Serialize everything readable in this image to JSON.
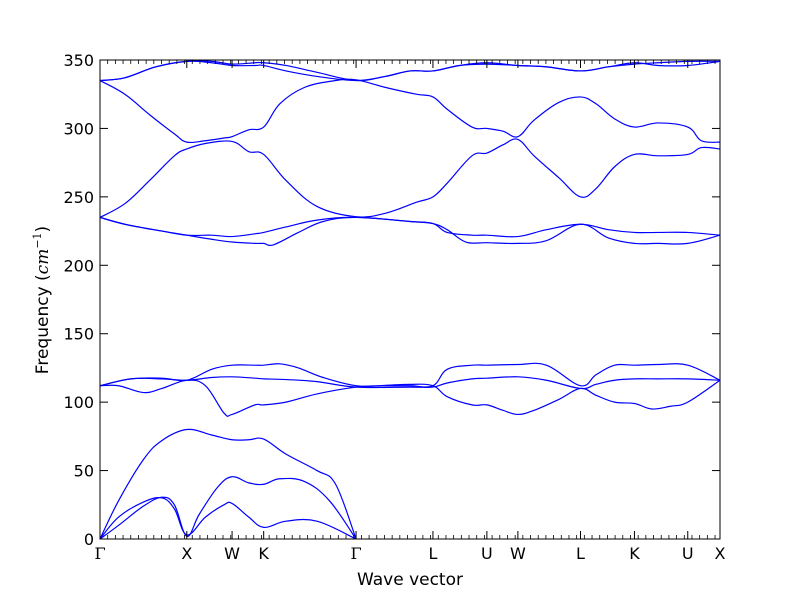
{
  "chart_data": {
    "type": "line",
    "title": "",
    "xlabel": "Wave vector",
    "ylabel_main": "Frequency (",
    "ylabel_unit": "cm",
    "ylabel_exp": "−1",
    "ylabel_close": ")",
    "ylim": [
      0,
      350
    ],
    "yticks": [
      0,
      50,
      100,
      150,
      200,
      250,
      300,
      350
    ],
    "xlim": [
      0,
      1
    ],
    "high_symmetry_points": [
      {
        "label": "Γ",
        "x": 0.0
      },
      {
        "label": "X",
        "x": 0.14
      },
      {
        "label": "W",
        "x": 0.213
      },
      {
        "label": "K",
        "x": 0.264
      },
      {
        "label": "Γ",
        "x": 0.413
      },
      {
        "label": "L",
        "x": 0.537
      },
      {
        "label": "U",
        "x": 0.624
      },
      {
        "label": "W",
        "x": 0.674
      },
      {
        "label": "L",
        "x": 0.775
      },
      {
        "label": "K",
        "x": 0.862
      },
      {
        "label": "U",
        "x": 0.948
      },
      {
        "label": "X",
        "x": 1.0
      }
    ],
    "minor_tick_spacing": 0.0124,
    "line_color": "#0000ff",
    "series": [
      {
        "points": [
          [
            0,
            0
          ],
          [
            0.03,
            10
          ],
          [
            0.07,
            24
          ],
          [
            0.1,
            30.5
          ],
          [
            0.12,
            25
          ],
          [
            0.14,
            2
          ],
          [
            0.16,
            18
          ],
          [
            0.19,
            38
          ],
          [
            0.213,
            45.5
          ],
          [
            0.24,
            41
          ],
          [
            0.264,
            40
          ],
          [
            0.29,
            44
          ],
          [
            0.33,
            42
          ],
          [
            0.37,
            28
          ],
          [
            0.413,
            0
          ]
        ]
      },
      {
        "points": [
          [
            0,
            0
          ],
          [
            0.03,
            16
          ],
          [
            0.07,
            27
          ],
          [
            0.1,
            30
          ],
          [
            0.12,
            22
          ],
          [
            0.14,
            3
          ],
          [
            0.17,
            16
          ],
          [
            0.2,
            25
          ],
          [
            0.213,
            26
          ],
          [
            0.24,
            16
          ],
          [
            0.264,
            8.5
          ],
          [
            0.3,
            13
          ],
          [
            0.35,
            13
          ],
          [
            0.413,
            0
          ]
        ]
      },
      {
        "points": [
          [
            0,
            0
          ],
          [
            0.03,
            28
          ],
          [
            0.07,
            58
          ],
          [
            0.1,
            72
          ],
          [
            0.14,
            80
          ],
          [
            0.18,
            76
          ],
          [
            0.213,
            72.5
          ],
          [
            0.24,
            72.5
          ],
          [
            0.264,
            73
          ],
          [
            0.3,
            62
          ],
          [
            0.35,
            50
          ],
          [
            0.38,
            40
          ],
          [
            0.413,
            0
          ]
        ]
      },
      {
        "points": [
          [
            0,
            112
          ],
          [
            0.03,
            112
          ],
          [
            0.07,
            107
          ],
          [
            0.1,
            110
          ],
          [
            0.14,
            116
          ],
          [
            0.17,
            112
          ],
          [
            0.2,
            92
          ],
          [
            0.213,
            91
          ],
          [
            0.25,
            98
          ],
          [
            0.264,
            98
          ],
          [
            0.3,
            100
          ],
          [
            0.35,
            106
          ],
          [
            0.413,
            111
          ],
          [
            0.45,
            112
          ],
          [
            0.5,
            113
          ],
          [
            0.537,
            112
          ],
          [
            0.56,
            104
          ],
          [
            0.6,
            98
          ],
          [
            0.624,
            98
          ],
          [
            0.65,
            94
          ],
          [
            0.674,
            91
          ],
          [
            0.7,
            94
          ],
          [
            0.74,
            102
          ],
          [
            0.775,
            110
          ],
          [
            0.8,
            105
          ],
          [
            0.83,
            100
          ],
          [
            0.862,
            99
          ],
          [
            0.89,
            95
          ],
          [
            0.92,
            97
          ],
          [
            0.948,
            100
          ],
          [
            1.0,
            116
          ]
        ]
      },
      {
        "points": [
          [
            0,
            112
          ],
          [
            0.05,
            117
          ],
          [
            0.1,
            117
          ],
          [
            0.14,
            116
          ],
          [
            0.18,
            118
          ],
          [
            0.213,
            118.5
          ],
          [
            0.25,
            117.5
          ],
          [
            0.264,
            117
          ],
          [
            0.3,
            116.5
          ],
          [
            0.35,
            115
          ],
          [
            0.413,
            111
          ],
          [
            0.5,
            111
          ],
          [
            0.537,
            111
          ],
          [
            0.56,
            114
          ],
          [
            0.6,
            117
          ],
          [
            0.624,
            117.5
          ],
          [
            0.674,
            118.5
          ],
          [
            0.72,
            116
          ],
          [
            0.775,
            110
          ],
          [
            0.8,
            113
          ],
          [
            0.83,
            116
          ],
          [
            0.862,
            117
          ],
          [
            0.9,
            117
          ],
          [
            0.948,
            117
          ],
          [
            1.0,
            116
          ]
        ]
      },
      {
        "points": [
          [
            0,
            112
          ],
          [
            0.05,
            117
          ],
          [
            0.1,
            117.5
          ],
          [
            0.14,
            116
          ],
          [
            0.18,
            124
          ],
          [
            0.213,
            127
          ],
          [
            0.25,
            127
          ],
          [
            0.264,
            127
          ],
          [
            0.29,
            128
          ],
          [
            0.32,
            125
          ],
          [
            0.36,
            118
          ],
          [
            0.413,
            112
          ],
          [
            0.46,
            112
          ],
          [
            0.5,
            112
          ],
          [
            0.537,
            112
          ],
          [
            0.56,
            124
          ],
          [
            0.6,
            127
          ],
          [
            0.624,
            127
          ],
          [
            0.674,
            127.5
          ],
          [
            0.72,
            127
          ],
          [
            0.775,
            112
          ],
          [
            0.8,
            120
          ],
          [
            0.83,
            127
          ],
          [
            0.862,
            127
          ],
          [
            0.9,
            127.5
          ],
          [
            0.948,
            127
          ],
          [
            1.0,
            116
          ]
        ]
      },
      {
        "points": [
          [
            0,
            235
          ],
          [
            0.04,
            230
          ],
          [
            0.1,
            225
          ],
          [
            0.14,
            222
          ],
          [
            0.18,
            222
          ],
          [
            0.213,
            221
          ],
          [
            0.25,
            223
          ],
          [
            0.264,
            224
          ],
          [
            0.3,
            228
          ],
          [
            0.35,
            233
          ],
          [
            0.413,
            235
          ],
          [
            0.5,
            232
          ],
          [
            0.537,
            230.5
          ],
          [
            0.56,
            224
          ],
          [
            0.6,
            222
          ],
          [
            0.624,
            222
          ],
          [
            0.674,
            221
          ],
          [
            0.72,
            226
          ],
          [
            0.775,
            230
          ],
          [
            0.82,
            226
          ],
          [
            0.862,
            224
          ],
          [
            0.9,
            224
          ],
          [
            0.948,
            224
          ],
          [
            1.0,
            222
          ]
        ]
      },
      {
        "points": [
          [
            0,
            235
          ],
          [
            0.04,
            230
          ],
          [
            0.1,
            225
          ],
          [
            0.14,
            222
          ],
          [
            0.18,
            219
          ],
          [
            0.213,
            217
          ],
          [
            0.25,
            216
          ],
          [
            0.264,
            216
          ],
          [
            0.28,
            215
          ],
          [
            0.32,
            224
          ],
          [
            0.36,
            232
          ],
          [
            0.413,
            235
          ],
          [
            0.5,
            232
          ],
          [
            0.537,
            230.5
          ],
          [
            0.56,
            226
          ],
          [
            0.59,
            217
          ],
          [
            0.624,
            216.5
          ],
          [
            0.674,
            216
          ],
          [
            0.72,
            218
          ],
          [
            0.775,
            230
          ],
          [
            0.82,
            220
          ],
          [
            0.862,
            216
          ],
          [
            0.9,
            216
          ],
          [
            0.948,
            216
          ],
          [
            1.0,
            222
          ]
        ]
      },
      {
        "points": [
          [
            0,
            235
          ],
          [
            0.04,
            245
          ],
          [
            0.08,
            262
          ],
          [
            0.12,
            280
          ],
          [
            0.14,
            285
          ],
          [
            0.17,
            289
          ],
          [
            0.213,
            290.5
          ],
          [
            0.24,
            283
          ],
          [
            0.264,
            281
          ],
          [
            0.3,
            262
          ],
          [
            0.35,
            243
          ],
          [
            0.413,
            235.5
          ],
          [
            0.46,
            238
          ],
          [
            0.51,
            246
          ],
          [
            0.537,
            250
          ],
          [
            0.56,
            260
          ],
          [
            0.6,
            280
          ],
          [
            0.624,
            282
          ],
          [
            0.65,
            288
          ],
          [
            0.674,
            292
          ],
          [
            0.7,
            280
          ],
          [
            0.74,
            264
          ],
          [
            0.775,
            250
          ],
          [
            0.8,
            256
          ],
          [
            0.83,
            272
          ],
          [
            0.862,
            281
          ],
          [
            0.9,
            280
          ],
          [
            0.948,
            281
          ],
          [
            0.97,
            286
          ],
          [
            1.0,
            285
          ]
        ]
      },
      {
        "points": [
          [
            0,
            335
          ],
          [
            0.04,
            325
          ],
          [
            0.08,
            310
          ],
          [
            0.12,
            296
          ],
          [
            0.14,
            290
          ],
          [
            0.17,
            291
          ],
          [
            0.2,
            293
          ],
          [
            0.213,
            294
          ],
          [
            0.24,
            299
          ],
          [
            0.264,
            301
          ],
          [
            0.29,
            318
          ],
          [
            0.33,
            330
          ],
          [
            0.38,
            335
          ],
          [
            0.413,
            335.5
          ],
          [
            0.46,
            330
          ],
          [
            0.51,
            325
          ],
          [
            0.537,
            323
          ],
          [
            0.56,
            314
          ],
          [
            0.6,
            301
          ],
          [
            0.624,
            300
          ],
          [
            0.65,
            298
          ],
          [
            0.674,
            294
          ],
          [
            0.7,
            306
          ],
          [
            0.74,
            319
          ],
          [
            0.775,
            323
          ],
          [
            0.8,
            318
          ],
          [
            0.83,
            307
          ],
          [
            0.862,
            301
          ],
          [
            0.9,
            304
          ],
          [
            0.948,
            301
          ],
          [
            0.97,
            291
          ],
          [
            1.0,
            290
          ]
        ]
      },
      {
        "points": [
          [
            0,
            335
          ],
          [
            0.04,
            337
          ],
          [
            0.09,
            345
          ],
          [
            0.14,
            349
          ],
          [
            0.18,
            349
          ],
          [
            0.213,
            347
          ],
          [
            0.25,
            348
          ],
          [
            0.264,
            348
          ],
          [
            0.3,
            346
          ],
          [
            0.35,
            341
          ],
          [
            0.413,
            335
          ],
          [
            0.46,
            338
          ],
          [
            0.5,
            342
          ],
          [
            0.537,
            342
          ],
          [
            0.58,
            346
          ],
          [
            0.624,
            348
          ],
          [
            0.674,
            346
          ],
          [
            0.72,
            345
          ],
          [
            0.775,
            342
          ],
          [
            0.82,
            345
          ],
          [
            0.862,
            348
          ],
          [
            0.9,
            346
          ],
          [
            0.948,
            346
          ],
          [
            1.0,
            349
          ]
        ]
      },
      {
        "points": [
          [
            0,
            335
          ],
          [
            0.04,
            337
          ],
          [
            0.09,
            345
          ],
          [
            0.14,
            349
          ],
          [
            0.18,
            348
          ],
          [
            0.213,
            346
          ],
          [
            0.25,
            346
          ],
          [
            0.264,
            346
          ],
          [
            0.3,
            342
          ],
          [
            0.35,
            338
          ],
          [
            0.413,
            335
          ],
          [
            0.46,
            338
          ],
          [
            0.5,
            342
          ],
          [
            0.537,
            342
          ],
          [
            0.58,
            346
          ],
          [
            0.624,
            347
          ],
          [
            0.674,
            346
          ],
          [
            0.72,
            345
          ],
          [
            0.775,
            342
          ],
          [
            0.82,
            345
          ],
          [
            0.862,
            347
          ],
          [
            0.9,
            348
          ],
          [
            0.948,
            349
          ],
          [
            1.0,
            349
          ]
        ]
      }
    ]
  }
}
